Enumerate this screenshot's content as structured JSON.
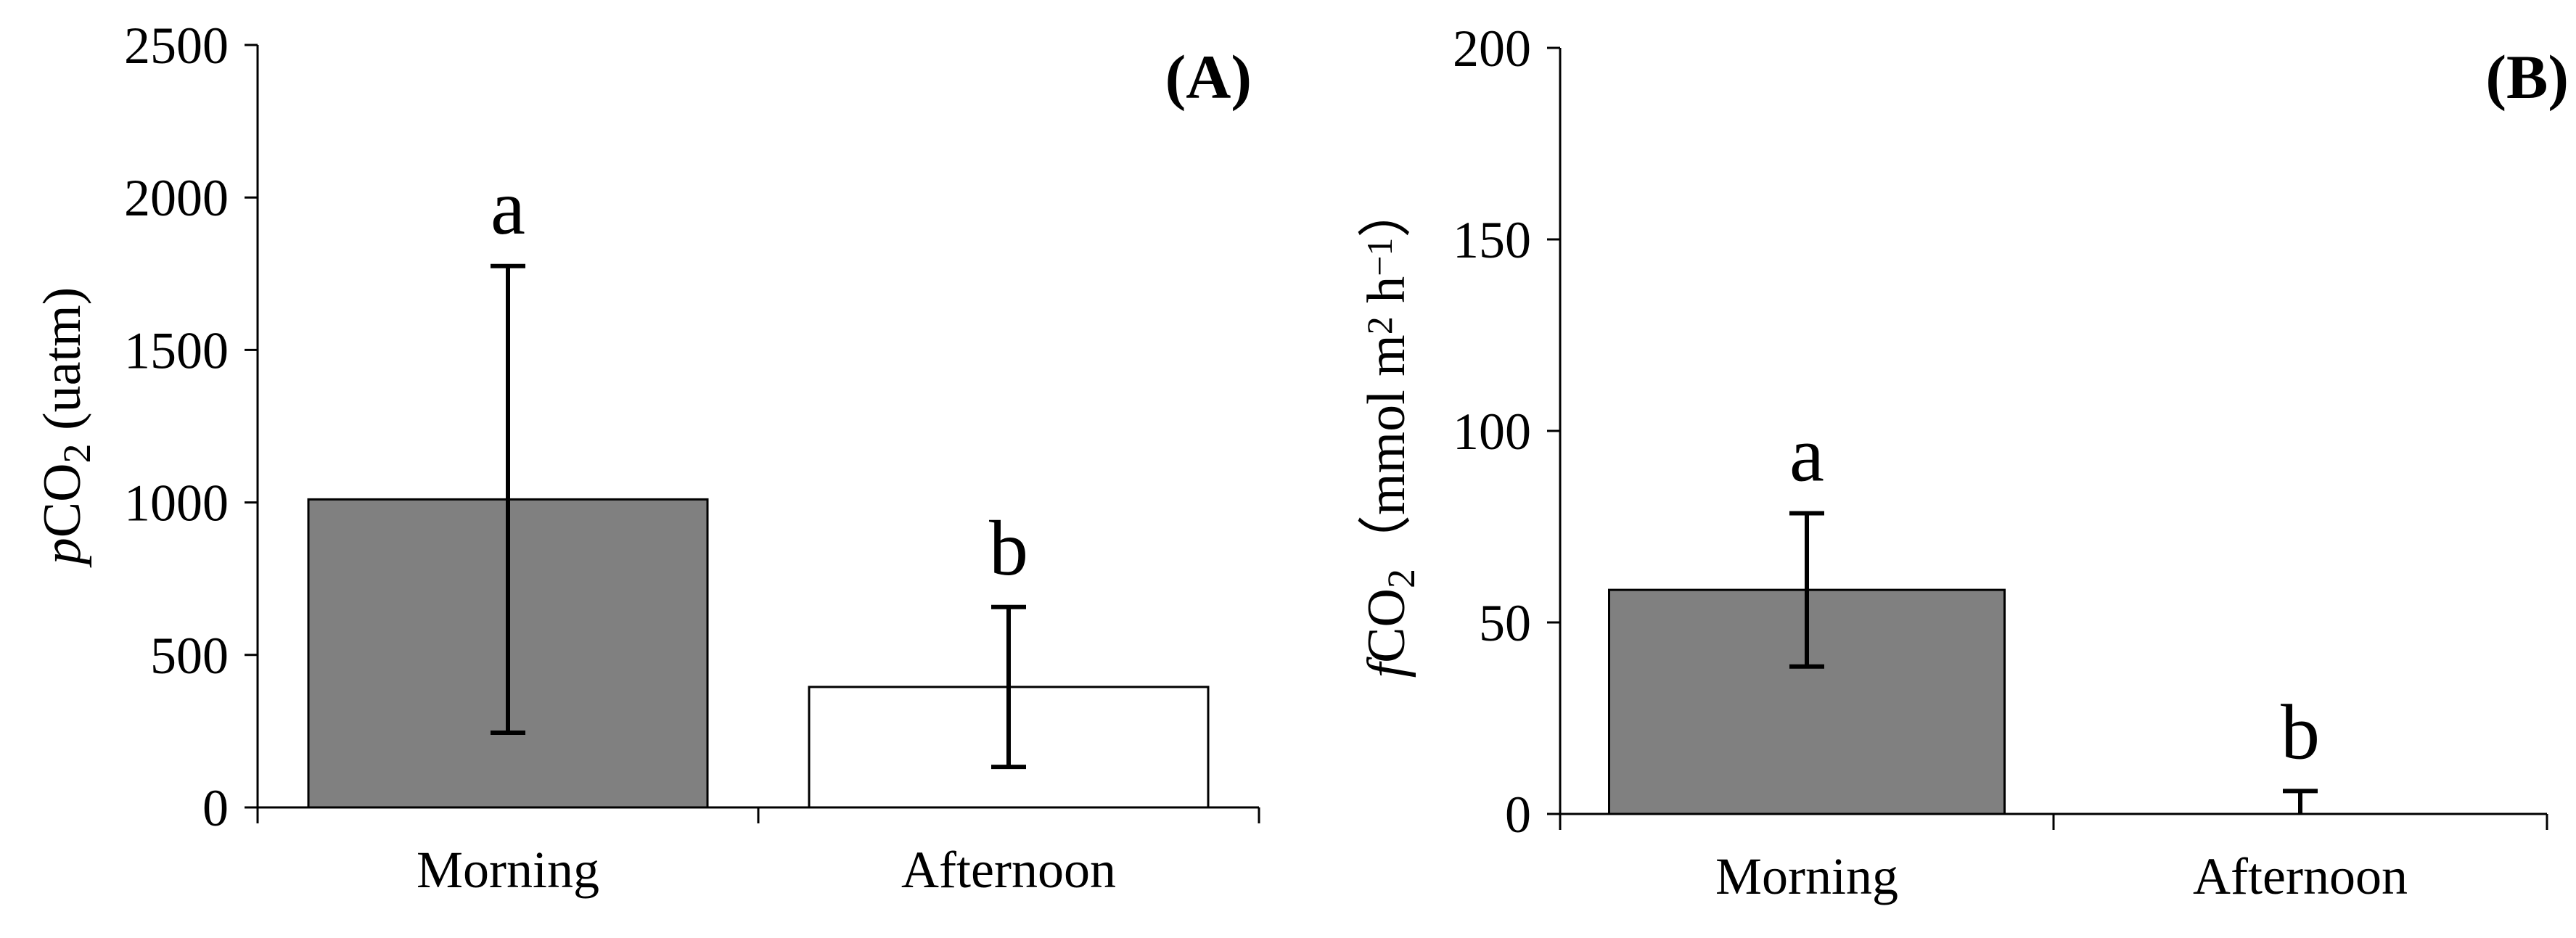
{
  "chart_data": [
    {
      "type": "bar",
      "panel_label": "(A)",
      "categories": [
        "Morning",
        "Afternoon"
      ],
      "values": [
        1010,
        395
      ],
      "errors": [
        765,
        262
      ],
      "letters": [
        "a",
        "b"
      ],
      "ylabel": {
        "italic": "p",
        "main": "CO",
        "sub": "2",
        "rest": " (uatm)"
      },
      "ylim": [
        0,
        2500
      ],
      "yticks": [
        0,
        500,
        1000,
        1500,
        2000,
        2500
      ],
      "bar_colors": [
        "#808080",
        "#ffffff"
      ]
    },
    {
      "type": "bar",
      "panel_label": "(B)",
      "categories": [
        "Morning",
        "Afternoon"
      ],
      "values": [
        58.5,
        0
      ],
      "errors": [
        20,
        6
      ],
      "letters": [
        "a",
        "b"
      ],
      "ylabel": {
        "italic": "f",
        "main": "CO",
        "sub": "2",
        "rest": "（mmol m",
        "sup1": "2",
        "rest2": " h",
        "sup2": "−1",
        "rest3": "）"
      },
      "ylim": [
        0,
        200
      ],
      "yticks": [
        0,
        50,
        100,
        150,
        200
      ],
      "bar_colors": [
        "#808080",
        "#ffffff"
      ]
    }
  ]
}
